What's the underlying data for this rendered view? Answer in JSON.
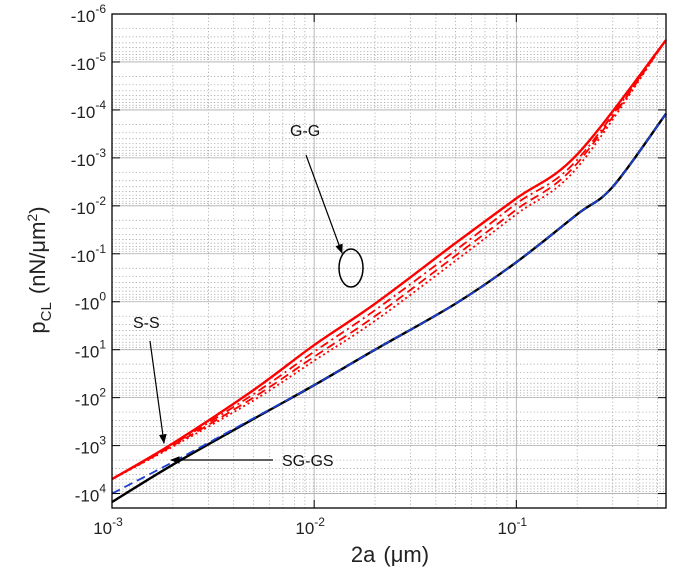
{
  "chart_data": {
    "type": "line",
    "xlabel_main": "2a",
    "xlabel_unit": "(μm)",
    "ylabel_main": "p",
    "ylabel_sub": "CL",
    "ylabel_unit_pre": "(nN/μm",
    "ylabel_unit_sup": "2",
    "ylabel_unit_post": ")",
    "x_scale": "log",
    "y_scale": "log (negative values; magnitude increases downward)",
    "xlim": [
      0.001,
      0.55
    ],
    "ylim_magnitude": [
      1e-06,
      20000
    ],
    "grid": true,
    "x_tick_labels": [
      {
        "base": "10",
        "exp": "-3",
        "value": 0.001
      },
      {
        "base": "10",
        "exp": "-2",
        "value": 0.01
      },
      {
        "base": "10",
        "exp": "-1",
        "value": 0.1
      }
    ],
    "y_tick_labels": [
      {
        "base": "-10",
        "exp": "-6",
        "value": 1e-06
      },
      {
        "base": "-10",
        "exp": "-5",
        "value": 1e-05
      },
      {
        "base": "-10",
        "exp": "-4",
        "value": 0.0001
      },
      {
        "base": "-10",
        "exp": "-3",
        "value": 0.001
      },
      {
        "base": "-10",
        "exp": "-2",
        "value": 0.01
      },
      {
        "base": "-10",
        "exp": "-1",
        "value": 0.1
      },
      {
        "base": "-10",
        "exp": "0",
        "value": 1
      },
      {
        "base": "-10",
        "exp": "1",
        "value": 10
      },
      {
        "base": "-10",
        "exp": "2",
        "value": 100
      },
      {
        "base": "-10",
        "exp": "3",
        "value": 1000
      },
      {
        "base": "-10",
        "exp": "4",
        "value": 10000
      }
    ],
    "series": [
      {
        "style": "solid",
        "color": "#ff0000",
        "x": [
          0.001,
          0.002,
          0.005,
          0.01,
          0.02,
          0.05,
          0.1,
          0.2,
          0.55
        ],
        "y": [
          -5000,
          -900,
          -70,
          -8,
          -1.1,
          -0.06,
          -0.007,
          -0.00085,
          -3.5e-06
        ]
      },
      {
        "style": "dashdot",
        "color": "#ff0000",
        "x": [
          0.001,
          0.002,
          0.005,
          0.01,
          0.02,
          0.05,
          0.1,
          0.2,
          0.55
        ],
        "y": [
          -5000,
          -950,
          -85,
          -11,
          -1.5,
          -0.085,
          -0.009,
          -0.0011,
          -3.5e-06
        ]
      },
      {
        "style": "dashed",
        "color": "#ff0000",
        "x": [
          0.001,
          0.002,
          0.005,
          0.01,
          0.02,
          0.05,
          0.1,
          0.2,
          0.55
        ],
        "y": [
          -5000,
          -1000,
          -100,
          -14,
          -2,
          -0.11,
          -0.012,
          -0.0013,
          -3.5e-06
        ]
      },
      {
        "style": "dotted",
        "color": "#ff0000",
        "x": [
          0.001,
          0.002,
          0.005,
          0.01,
          0.02,
          0.05,
          0.1,
          0.2,
          0.55
        ],
        "y": [
          -5000,
          -1050,
          -115,
          -17,
          -2.5,
          -0.14,
          -0.015,
          -0.0016,
          -3.5e-06
        ]
      },
      {
        "style": "solid",
        "color": "#000000",
        "x": [
          0.001,
          0.002,
          0.005,
          0.01,
          0.02,
          0.05,
          0.1,
          0.2,
          0.3,
          0.55
        ],
        "y": [
          -15000,
          -2500,
          -280,
          -55,
          -10,
          -1.1,
          -0.15,
          -0.015,
          -0.004,
          -0.00012
        ]
      },
      {
        "style": "dashed",
        "color": "#1a3fd0",
        "x": [
          0.001,
          0.002,
          0.005,
          0.01,
          0.02,
          0.05,
          0.1,
          0.2,
          0.3,
          0.55
        ],
        "y": [
          -10000,
          -2200,
          -270,
          -55,
          -10,
          -1.1,
          -0.15,
          -0.015,
          -0.004,
          -0.00012
        ]
      }
    ],
    "annotations": [
      {
        "text": "G-G"
      },
      {
        "text": "S-S"
      },
      {
        "text": "SG-GS"
      }
    ]
  }
}
